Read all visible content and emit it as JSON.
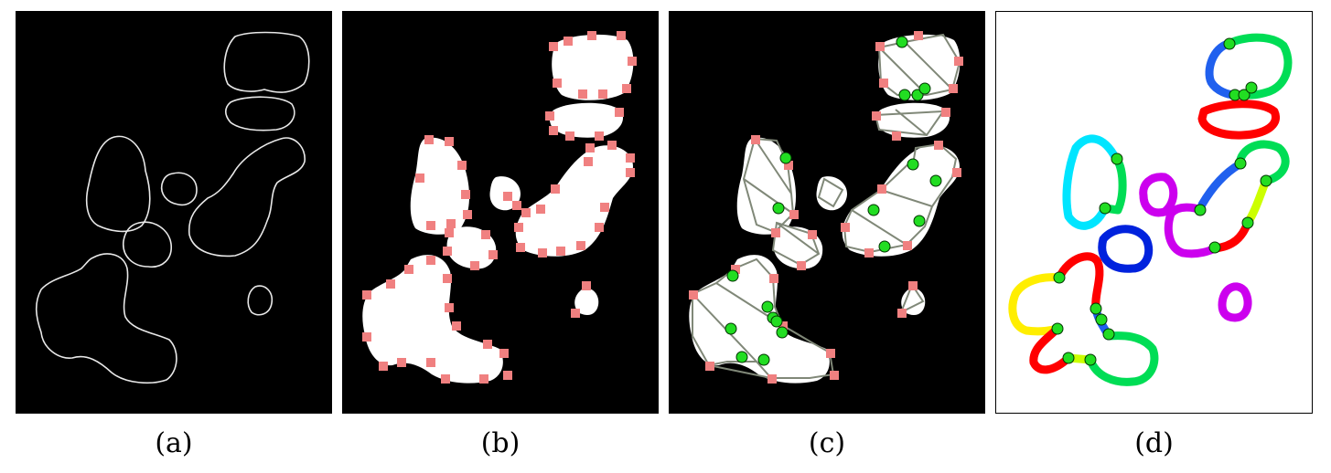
{
  "captions": {
    "a": "(a)",
    "b": "(b)",
    "c": "(c)",
    "d": "(d)"
  },
  "colors": {
    "background_dark": "#000000",
    "background_light": "#ffffff",
    "contour": "#e8e8e8",
    "region_fill": "#ffffff",
    "marker_square": "#f08080",
    "graph_edge": "#808878",
    "node_green": "#22dd22",
    "segments": [
      "#ff0000",
      "#00dd55",
      "#2060ee",
      "#00e5ff",
      "#cc00ee",
      "#ffee00",
      "#ccff00",
      "#0022dd"
    ]
  }
}
